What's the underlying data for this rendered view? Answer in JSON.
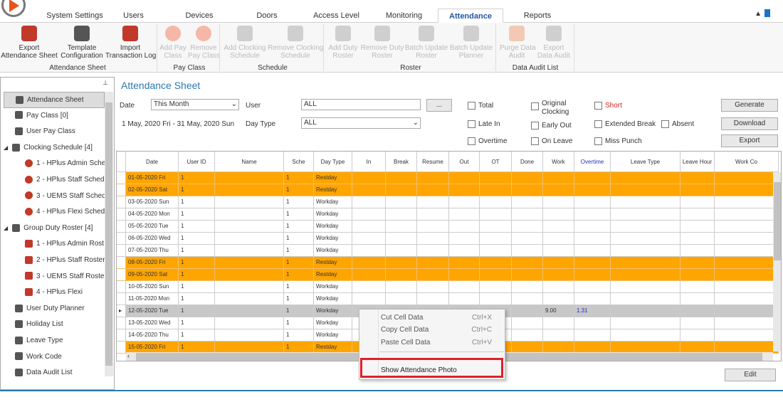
{
  "tabs": [
    "System Settings",
    "Users",
    "Devices",
    "Doors",
    "Access Level",
    "Monitoring",
    "Attendance",
    "Reports"
  ],
  "active_tab": "Attendance",
  "ribbon": {
    "buttons": [
      {
        "label1": "Export",
        "label2": "Attendance Sheet",
        "enabled": true,
        "icon": "sheet-icon"
      },
      {
        "label1": "Template",
        "label2": "Configuration",
        "enabled": true,
        "icon": "wrench-gear-icon"
      },
      {
        "label1": "Import",
        "label2": "Transaction Log",
        "enabled": true,
        "icon": "log-icon"
      },
      {
        "label1": "Add Pay",
        "label2": "Class",
        "enabled": false,
        "icon": "plus-circle-icon"
      },
      {
        "label1": "Remove",
        "label2": "Pay Class",
        "enabled": false,
        "icon": "x-circle-icon"
      },
      {
        "label1": "Add Clocking",
        "label2": "Schedule",
        "enabled": false,
        "icon": "schedule-add-icon"
      },
      {
        "label1": "Remove Clocking",
        "label2": "Schedule",
        "enabled": false,
        "icon": "schedule-remove-icon"
      },
      {
        "label1": "Add Duty",
        "label2": "Roster",
        "enabled": false,
        "icon": "roster-add-icon"
      },
      {
        "label1": "Remove Duty",
        "label2": "Roster",
        "enabled": false,
        "icon": "roster-remove-icon"
      },
      {
        "label1": "Batch Update",
        "label2": "Roster",
        "enabled": false,
        "icon": "refresh-icon"
      },
      {
        "label1": "Batch Update",
        "label2": "Planner",
        "enabled": false,
        "icon": "refresh-icon"
      },
      {
        "label1": "Purge Data",
        "label2": "Audit",
        "enabled": false,
        "icon": "broom-icon"
      },
      {
        "label1": "Export",
        "label2": "Data Audit",
        "enabled": false,
        "icon": "export-icon"
      }
    ],
    "groups": [
      "Attendance Sheet",
      "Pay Class",
      "Schedule",
      "Roster",
      "Data Audit List"
    ]
  },
  "sidebar": {
    "items": [
      {
        "label": "Attendance Sheet",
        "level": 1,
        "selected": true
      },
      {
        "label": "Pay Class [0]",
        "level": 1
      },
      {
        "label": "User Pay Class",
        "level": 1
      },
      {
        "label": "Clocking Schedule [4]",
        "level": 0
      },
      {
        "label": "1 - HPlus Admin Sche",
        "level": 2
      },
      {
        "label": "2 - HPlus Staff Sched",
        "level": 2
      },
      {
        "label": "3 - UEMS Staff Sched",
        "level": 2
      },
      {
        "label": "4 - HPlus Flexi Sched",
        "level": 2
      },
      {
        "label": "Group Duty Roster [4]",
        "level": 0
      },
      {
        "label": "1 - HPlus Admin Rost",
        "level": 2
      },
      {
        "label": "2 - HPlus Staff Roster",
        "level": 2
      },
      {
        "label": "3 - UEMS Staff Roste",
        "level": 2
      },
      {
        "label": "4 - HPlus Flexi",
        "level": 2
      },
      {
        "label": "User Duty Planner",
        "level": 1
      },
      {
        "label": "Holiday List",
        "level": 1
      },
      {
        "label": "Leave Type",
        "level": 1
      },
      {
        "label": "Work Code",
        "level": 1
      },
      {
        "label": "Data Audit List",
        "level": 1
      }
    ]
  },
  "main": {
    "title": "Attendance Sheet",
    "date_label": "Date",
    "date_value": "This Month",
    "user_label": "User",
    "user_value": "ALL",
    "browse": "...",
    "range": "1 May, 2020 Fri - 31 May, 2020 Sun",
    "daytype_label": "Day Type",
    "daytype_value": "ALL",
    "checks": {
      "total": "Total",
      "late_in": "Late In",
      "overtime": "Overtime",
      "orig1": "Original",
      "orig2": "Clocking",
      "early_out": "Early Out",
      "on_leave": "On Leave",
      "short": "Short",
      "ext_break": "Extended Break",
      "absent": "Absent",
      "miss_punch": "Miss Punch"
    },
    "buttons": {
      "generate": "Generate",
      "download": "Download",
      "export": "Export",
      "edit": "Edit"
    },
    "short_color": "#cc2222"
  },
  "grid": {
    "columns": [
      "Date",
      "User ID",
      "Name",
      "Sche",
      "Day Type",
      "In",
      "Break",
      "Resume",
      "Out",
      "OT",
      "Done",
      "Work",
      "Overtime",
      "Leave Type",
      "Leave Hour",
      "Work Co"
    ],
    "rows": [
      {
        "date": "01-05-2020  Fri",
        "uid": "1",
        "sche": "1",
        "type": "Restday",
        "rest": true
      },
      {
        "date": "02-05-2020  Sat",
        "uid": "1",
        "sche": "1",
        "type": "Restday",
        "rest": true
      },
      {
        "date": "03-05-2020  Sun",
        "uid": "1",
        "sche": "1",
        "type": "Workday"
      },
      {
        "date": "04-05-2020  Mon",
        "uid": "1",
        "sche": "1",
        "type": "Workday"
      },
      {
        "date": "05-05-2020  Tue",
        "uid": "1",
        "sche": "1",
        "type": "Workday"
      },
      {
        "date": "06-05-2020  Wed",
        "uid": "1",
        "sche": "1",
        "type": "Workday"
      },
      {
        "date": "07-05-2020  Thu",
        "uid": "1",
        "sche": "1",
        "type": "Workday"
      },
      {
        "date": "08-05-2020  Fri",
        "uid": "1",
        "sche": "1",
        "type": "Restday",
        "rest": true
      },
      {
        "date": "09-05-2020  Sat",
        "uid": "1",
        "sche": "1",
        "type": "Restday",
        "rest": true
      },
      {
        "date": "10-05-2020  Sun",
        "uid": "1",
        "sche": "1",
        "type": "Workday"
      },
      {
        "date": "11-05-2020  Mon",
        "uid": "1",
        "sche": "1",
        "type": "Workday"
      },
      {
        "date": "12-05-2020  Tue",
        "uid": "1",
        "sche": "1",
        "type": "Workday",
        "selected": true,
        "work": "9.00",
        "overtime": "1.31"
      },
      {
        "date": "13-05-2020  Wed",
        "uid": "1",
        "sche": "1",
        "type": "Workday"
      },
      {
        "date": "14-05-2020  Thu",
        "uid": "1",
        "sche": "1",
        "type": "Workday"
      },
      {
        "date": "15-05-2020  Fri",
        "uid": "1",
        "sche": "1",
        "type": "Restday",
        "rest": true
      }
    ],
    "rest_color": "#ffa500"
  },
  "context_menu": {
    "items": [
      {
        "label": "Cut Cell Data",
        "shortcut": "Ctrl+X"
      },
      {
        "label": "Copy Cell Data",
        "shortcut": "Ctrl+C"
      },
      {
        "label": "Paste Cell Data",
        "shortcut": "Ctrl+V"
      },
      {
        "label": "Show Attendance Photo",
        "shortcut": "",
        "highlighted": true
      }
    ]
  }
}
